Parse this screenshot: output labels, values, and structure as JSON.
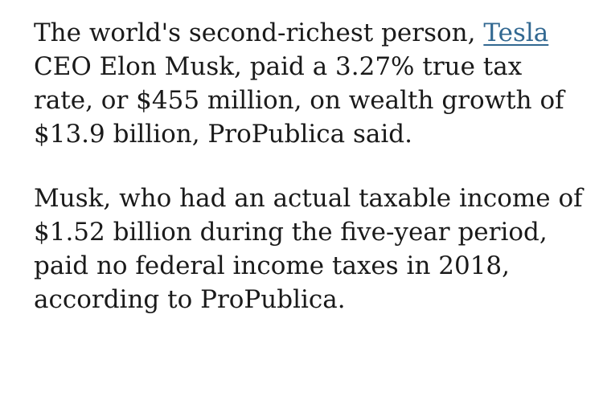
{
  "article": {
    "paragraph_1": {
      "line_1_text": "The world's second-richest person, ",
      "line_1_link": "Tesla",
      "line_2": "CEO Elon Musk, paid a 3.27% true tax",
      "line_3": "rate, or $455 million, on wealth growth of",
      "line_4": "$13.9 billion, ProPublica said."
    },
    "paragraph_2": {
      "line_1": "Musk, who had an actual taxable income of",
      "line_2": "$1.52 billion during the five-year period,",
      "line_3": "paid no federal income taxes in 2018,",
      "line_4": "according to ProPublica."
    },
    "colors": {
      "text": "#1a1a1a",
      "link": "#326891",
      "background": "#ffffff"
    }
  }
}
